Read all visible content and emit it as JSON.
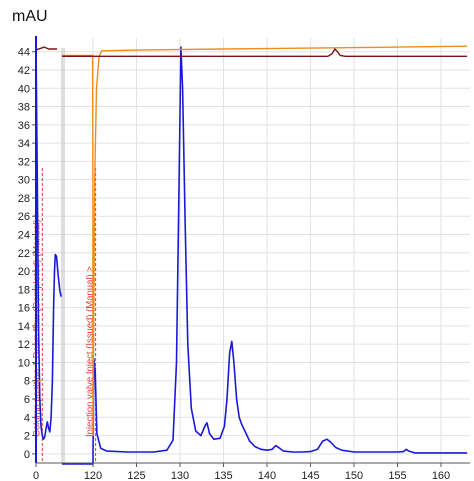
{
  "chart_data": {
    "type": "line",
    "unit_label": "mAU",
    "y_ticks": [
      0,
      2,
      4,
      6,
      8,
      10,
      12,
      14,
      16,
      18,
      20,
      22,
      24,
      26,
      28,
      30,
      32,
      34,
      36,
      38,
      40,
      42,
      44
    ],
    "x_ticks": [
      {
        "label": "0",
        "x": 0
      },
      {
        "label": "120",
        "x": 120
      },
      {
        "label": "125",
        "x": 125
      },
      {
        "label": "130",
        "x": 130
      },
      {
        "label": "135",
        "x": 135
      },
      {
        "label": "140",
        "x": 140
      },
      {
        "label": "145",
        "x": 145
      },
      {
        "label": "150",
        "x": 150
      },
      {
        "label": "155",
        "x": 155
      },
      {
        "label": "160",
        "x": 160
      }
    ],
    "ylim": [
      -1,
      45.5
    ],
    "annotations": [
      {
        "text": "Column position 1 Down flow (Completed) (Manual)  >",
        "x": 1.5,
        "color": "#e53935"
      },
      {
        "text": "Injection valve Inject (Issued) (Manual)  >",
        "x": 120.3,
        "color": "#e53935"
      }
    ],
    "series": [
      {
        "color": "#1a1ad6",
        "segment_a": [
          [
            0,
            44.6
          ],
          [
            0.3,
            30
          ],
          [
            0.6,
            14
          ],
          [
            0.9,
            6
          ],
          [
            1.2,
            3
          ],
          [
            1.5,
            2
          ],
          [
            1.8,
            1.6
          ],
          [
            2.1,
            1.9
          ],
          [
            2.4,
            2.8
          ],
          [
            2.7,
            3.5
          ],
          [
            3,
            2.8
          ],
          [
            3.3,
            2.4
          ],
          [
            3.6,
            4
          ],
          [
            3.9,
            8
          ],
          [
            4.2,
            16
          ],
          [
            4.4,
            20
          ],
          [
            4.6,
            21.8
          ],
          [
            4.9,
            21.6
          ],
          [
            5.3,
            19.5
          ],
          [
            5.7,
            17.8
          ],
          [
            6,
            17.2
          ]
        ],
        "segment_b": [
          [
            6.2,
            -1.1
          ],
          [
            119.9,
            -1.1
          ],
          [
            120,
            0.2
          ],
          [
            120.1,
            10.4
          ],
          [
            120.25,
            9
          ],
          [
            120.45,
            2.2
          ],
          [
            120.9,
            0.6
          ],
          [
            121.6,
            0.3
          ],
          [
            124,
            0.2
          ],
          [
            127,
            0.2
          ],
          [
            128.5,
            0.4
          ],
          [
            129.2,
            1.5
          ],
          [
            129.6,
            10
          ],
          [
            129.9,
            30
          ],
          [
            130.1,
            44.5
          ],
          [
            130.3,
            40
          ],
          [
            130.6,
            25
          ],
          [
            130.9,
            12
          ],
          [
            131.3,
            5
          ],
          [
            131.8,
            2.5
          ],
          [
            132.4,
            2
          ],
          [
            132.9,
            3.1
          ],
          [
            133.1,
            3.4
          ],
          [
            133.4,
            2.2
          ],
          [
            133.9,
            1.6
          ],
          [
            134.6,
            1.7
          ],
          [
            135.1,
            3
          ],
          [
            135.4,
            6
          ],
          [
            135.7,
            11
          ],
          [
            135.95,
            12.3
          ],
          [
            136.2,
            10
          ],
          [
            136.5,
            6
          ],
          [
            136.8,
            4
          ],
          [
            137.1,
            3.2
          ],
          [
            137.5,
            2.4
          ],
          [
            138,
            1.4
          ],
          [
            138.6,
            0.8
          ],
          [
            139.3,
            0.5
          ],
          [
            140,
            0.4
          ],
          [
            140.6,
            0.5
          ],
          [
            141,
            0.9
          ],
          [
            141.4,
            0.65
          ],
          [
            141.9,
            0.3
          ],
          [
            143,
            0.2
          ],
          [
            144,
            0.2
          ],
          [
            145,
            0.25
          ],
          [
            145.8,
            0.5
          ],
          [
            146.4,
            1.4
          ],
          [
            146.9,
            1.6
          ],
          [
            147.3,
            1.3
          ],
          [
            147.9,
            0.7
          ],
          [
            148.6,
            0.4
          ],
          [
            150,
            0.2
          ],
          [
            153,
            0.2
          ],
          [
            155,
            0.2
          ],
          [
            155.7,
            0.25
          ],
          [
            156,
            0.5
          ],
          [
            156.3,
            0.3
          ],
          [
            157,
            0.1
          ],
          [
            160,
            0.1
          ],
          [
            163,
            0.1
          ]
        ]
      },
      {
        "color": "#f08c1f",
        "segment_a": [
          [
            0,
            7.9
          ],
          [
            1.2,
            8
          ]
        ],
        "segment_b": [
          [
            6.2,
            43.6
          ],
          [
            118.8,
            43.6
          ],
          [
            119,
            39
          ],
          [
            119.3,
            34
          ],
          [
            119.55,
            28
          ],
          [
            119.8,
            22
          ],
          [
            120,
            2
          ],
          [
            120.2,
            30
          ],
          [
            120.4,
            40
          ],
          [
            120.7,
            43.5
          ],
          [
            121,
            44.1
          ],
          [
            126,
            44.2
          ],
          [
            135,
            44.3
          ],
          [
            145,
            44.4
          ],
          [
            155,
            44.5
          ],
          [
            163,
            44.6
          ]
        ]
      },
      {
        "color": "#7a1414",
        "segment_a": [
          [
            0,
            44.2
          ],
          [
            2,
            44.5
          ],
          [
            3,
            44.3
          ],
          [
            5,
            44.3
          ]
        ],
        "segment_b": [
          [
            6.2,
            43.5
          ],
          [
            147,
            43.5
          ],
          [
            147.5,
            43.8
          ],
          [
            147.8,
            44.3
          ],
          [
            148.1,
            44.0
          ],
          [
            148.4,
            43.6
          ],
          [
            149,
            43.5
          ],
          [
            163,
            43.5
          ]
        ]
      }
    ]
  }
}
